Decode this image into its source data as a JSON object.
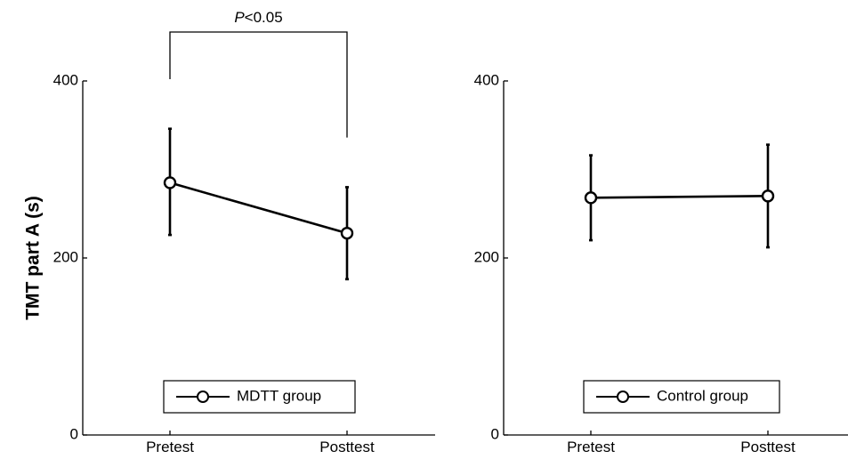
{
  "chart_data": [
    {
      "type": "line",
      "categories": [
        "Pretest",
        "Posttest"
      ],
      "series": [
        {
          "name": "MDTT group",
          "values": [
            285,
            228
          ],
          "error_low": [
            226,
            176
          ],
          "error_high": [
            346,
            280
          ],
          "color": "#000000"
        }
      ],
      "ylabel": "TMT part A (s)",
      "ylim": [
        0,
        400
      ],
      "yticks": [
        0,
        200,
        400
      ],
      "legend_position": "bottom-center",
      "annotation": {
        "text": "<0.05",
        "italic_prefix": "P"
      }
    },
    {
      "type": "line",
      "categories": [
        "Pretest",
        "Posttest"
      ],
      "series": [
        {
          "name": "Control group",
          "values": [
            268,
            270
          ],
          "error_low": [
            220,
            212
          ],
          "error_high": [
            316,
            328
          ],
          "color": "#000000"
        }
      ],
      "ylim": [
        0,
        400
      ],
      "yticks": [
        0,
        200,
        400
      ],
      "legend_position": "bottom-center"
    }
  ]
}
